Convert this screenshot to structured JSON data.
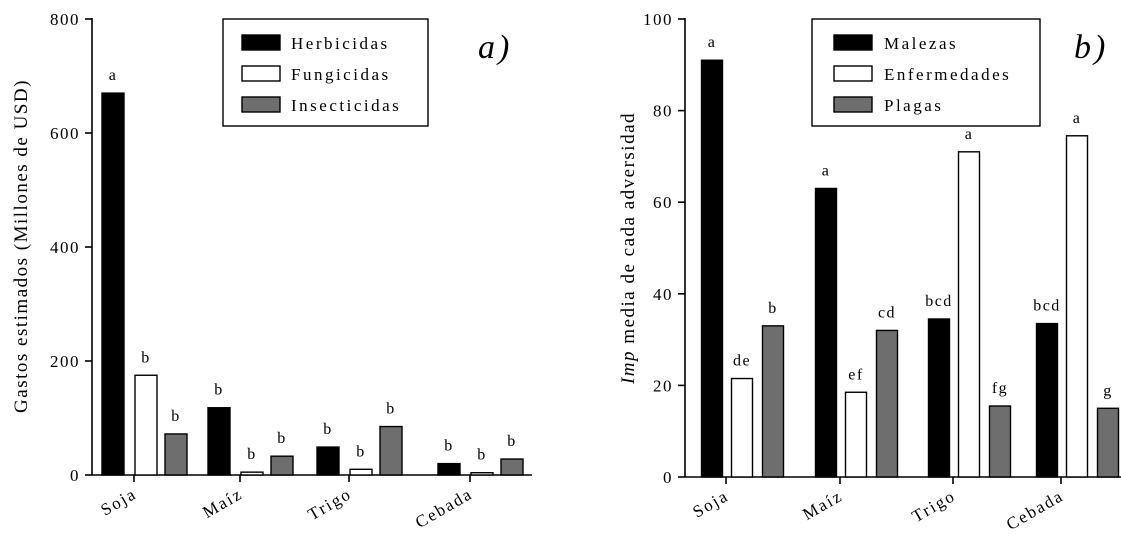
{
  "chart_data": [
    {
      "type": "bar",
      "panel_label": "a)",
      "categories": [
        "Soja",
        "Maíz",
        "Trigo",
        "Cebada"
      ],
      "ylabel": "Gastos estimados (Millones de USD)",
      "ylim": [
        0,
        800
      ],
      "yticks": [
        "0",
        "200",
        "400",
        "600",
        "800"
      ],
      "legend_position": "top-right",
      "series": [
        {
          "name": "Herbicidas",
          "color": "#000000",
          "values": [
            670,
            118,
            49,
            20
          ],
          "labels": [
            "a",
            "b",
            "b",
            "b"
          ]
        },
        {
          "name": "Fungicidas",
          "color": "#ffffff",
          "values": [
            175,
            5,
            10,
            4
          ],
          "labels": [
            "b",
            "b",
            "b",
            "b"
          ]
        },
        {
          "name": "Insecticidas",
          "color": "#6e6e6e",
          "values": [
            72,
            33,
            85,
            28
          ],
          "labels": [
            "b",
            "b",
            "b",
            "b"
          ]
        }
      ]
    },
    {
      "type": "bar",
      "panel_label": "b)",
      "categories": [
        "Soja",
        "Maíz",
        "Trigo",
        "Cebada"
      ],
      "ylabel_italic": "Imp",
      "ylabel_rest": " media de cada adversidad",
      "ylim": [
        0,
        100
      ],
      "yticks": [
        "0",
        "20",
        "40",
        "60",
        "80",
        "100"
      ],
      "legend_position": "top-right",
      "series": [
        {
          "name": "Malezas",
          "color": "#000000",
          "values": [
            91,
            63,
            34.5,
            33.5
          ],
          "labels": [
            "a",
            "a",
            "bcd",
            "bcd"
          ]
        },
        {
          "name": "Enfermedades",
          "color": "#ffffff",
          "values": [
            21.5,
            18.5,
            71,
            74.5
          ],
          "labels": [
            "de",
            "ef",
            "a",
            "a"
          ]
        },
        {
          "name": "Plagas",
          "color": "#6e6e6e",
          "values": [
            33,
            32,
            15.5,
            15
          ],
          "labels": [
            "b",
            "cd",
            "fg",
            "g"
          ]
        }
      ]
    }
  ]
}
